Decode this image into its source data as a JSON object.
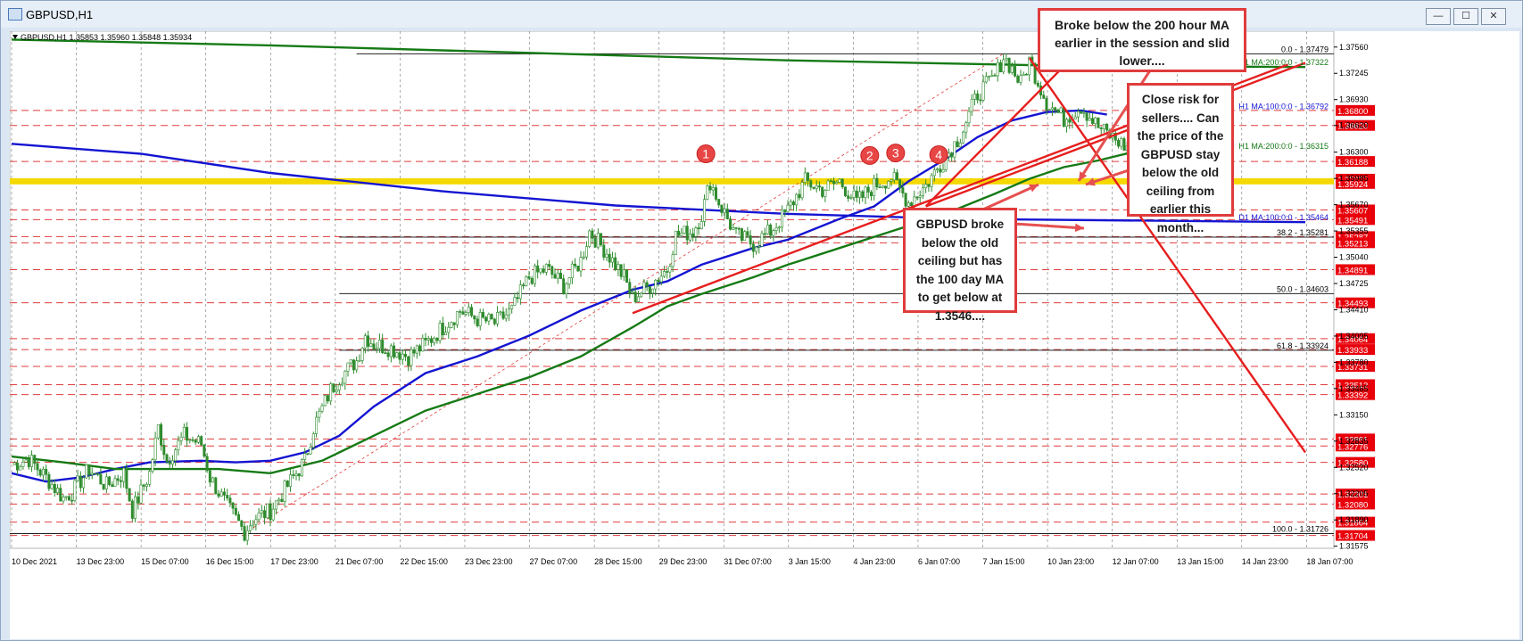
{
  "window": {
    "title": "GBPUSD,H1",
    "buttons": [
      "—",
      "☐",
      "✕"
    ]
  },
  "chart_data": {
    "type": "candlestick",
    "symbol_info": "GBPUSD,H1  1.35853 1.35960 1.35848 1.35934",
    "ylim": [
      1.3155,
      1.3775
    ],
    "price_ticks": [
      1.3756,
      1.37245,
      1.3693,
      1.3662,
      1.363,
      1.35985,
      1.3567,
      1.35355,
      1.3504,
      1.34725,
      1.3441,
      1.34095,
      1.3378,
      1.33465,
      1.3315,
      1.32835,
      1.3252,
      1.32205,
      1.3189,
      1.31575
    ],
    "price_tick_labels": [
      "1.37560",
      "1.37245",
      "1.36930",
      "1.36620",
      "1.36300",
      "1.35985",
      "1.35670",
      "1.35355",
      "1.35040",
      "1.34725",
      "1.34410",
      "1.34095",
      "1.33780",
      "1.33465",
      "1.33150",
      "1.32835",
      "1.32520",
      "1.32205",
      "1.31890",
      "1.31575"
    ],
    "time_labels": [
      "10 Dec 2021",
      "13 Dec 23:00",
      "15 Dec 07:00",
      "16 Dec 15:00",
      "17 Dec 23:00",
      "21 Dec 07:00",
      "22 Dec 15:00",
      "23 Dec 23:00",
      "27 Dec 07:00",
      "28 Dec 15:00",
      "29 Dec 23:00",
      "31 Dec 07:00",
      "3 Jan 15:00",
      "4 Jan 23:00",
      "6 Jan 07:00",
      "7 Jan 15:00",
      "10 Jan 23:00",
      "12 Jan 07:00",
      "13 Jan 15:00",
      "14 Jan 23:00",
      "18 Jan 07:00"
    ],
    "price_path": [
      [
        0,
        1.3255
      ],
      [
        2,
        1.3262
      ],
      [
        4,
        1.324
      ],
      [
        6,
        1.3215
      ],
      [
        7,
        1.3222
      ],
      [
        9,
        1.325
      ],
      [
        11,
        1.323
      ],
      [
        13,
        1.3245
      ],
      [
        14,
        1.32
      ],
      [
        16,
        1.3245
      ],
      [
        17,
        1.33
      ],
      [
        18,
        1.326
      ],
      [
        20,
        1.329
      ],
      [
        22,
        1.328
      ],
      [
        23,
        1.324
      ],
      [
        25,
        1.3205
      ],
      [
        27,
        1.3175
      ],
      [
        28,
        1.319
      ],
      [
        30,
        1.32
      ],
      [
        32,
        1.323
      ],
      [
        34,
        1.326
      ],
      [
        35,
        1.33
      ],
      [
        37,
        1.3345
      ],
      [
        38,
        1.336
      ],
      [
        40,
        1.338
      ],
      [
        41,
        1.341
      ],
      [
        42,
        1.34
      ],
      [
        44,
        1.3395
      ],
      [
        46,
        1.3385
      ],
      [
        48,
        1.34
      ],
      [
        50,
        1.342
      ],
      [
        52,
        1.344
      ],
      [
        54,
        1.343
      ],
      [
        56,
        1.3425
      ],
      [
        58,
        1.344
      ],
      [
        60,
        1.348
      ],
      [
        62,
        1.349
      ],
      [
        64,
        1.347
      ],
      [
        66,
        1.35
      ],
      [
        67,
        1.3535
      ],
      [
        69,
        1.351
      ],
      [
        71,
        1.348
      ],
      [
        72,
        1.3455
      ],
      [
        74,
        1.347
      ],
      [
        76,
        1.349
      ],
      [
        77,
        1.353
      ],
      [
        79,
        1.3535
      ],
      [
        80,
        1.3555
      ],
      [
        81,
        1.3595
      ],
      [
        82,
        1.357
      ],
      [
        84,
        1.353
      ],
      [
        86,
        1.352
      ],
      [
        88,
        1.3535
      ],
      [
        90,
        1.356
      ],
      [
        92,
        1.3595
      ],
      [
        94,
        1.3585
      ],
      [
        96,
        1.3595
      ],
      [
        98,
        1.357
      ],
      [
        100,
        1.359
      ],
      [
        102,
        1.36
      ],
      [
        104,
        1.357
      ],
      [
        106,
        1.359
      ],
      [
        108,
        1.362
      ],
      [
        110,
        1.365
      ],
      [
        112,
        1.37
      ],
      [
        114,
        1.372
      ],
      [
        115,
        1.3745
      ],
      [
        116,
        1.373
      ],
      [
        117,
        1.3712
      ],
      [
        118,
        1.374
      ],
      [
        120,
        1.369
      ],
      [
        122,
        1.367
      ],
      [
        124,
        1.3685
      ],
      [
        126,
        1.366
      ],
      [
        128,
        1.3645
      ],
      [
        130,
        1.363
      ],
      [
        131,
        1.361
      ],
      [
        133,
        1.3585
      ],
      [
        134,
        1.3575
      ],
      [
        135,
        1.359
      ]
    ],
    "series": [
      {
        "name": "H1 MA:100:0:0",
        "color": "#1414d2",
        "values": [
          [
            0,
            1.3245
          ],
          [
            4,
            1.3235
          ],
          [
            8,
            1.324
          ],
          [
            12,
            1.325
          ],
          [
            16,
            1.3258
          ],
          [
            22,
            1.326
          ],
          [
            26,
            1.3258
          ],
          [
            30,
            1.326
          ],
          [
            34,
            1.327
          ],
          [
            38,
            1.329
          ],
          [
            42,
            1.3325
          ],
          [
            48,
            1.3365
          ],
          [
            54,
            1.3385
          ],
          [
            60,
            1.341
          ],
          [
            66,
            1.344
          ],
          [
            72,
            1.3465
          ],
          [
            76,
            1.3475
          ],
          [
            80,
            1.3495
          ],
          [
            86,
            1.3515
          ],
          [
            90,
            1.3525
          ],
          [
            96,
            1.355
          ],
          [
            100,
            1.3565
          ],
          [
            104,
            1.3595
          ],
          [
            108,
            1.362
          ],
          [
            112,
            1.3648
          ],
          [
            116,
            1.3668
          ],
          [
            120,
            1.3678
          ],
          [
            124,
            1.368
          ],
          [
            127,
            1.3675
          ]
        ]
      },
      {
        "name": "H1 MA:200:0:0",
        "color": "#157a15",
        "values": [
          [
            0,
            1.3265
          ],
          [
            6,
            1.3258
          ],
          [
            12,
            1.325
          ],
          [
            18,
            1.325
          ],
          [
            24,
            1.325
          ],
          [
            30,
            1.3245
          ],
          [
            36,
            1.326
          ],
          [
            42,
            1.329
          ],
          [
            48,
            1.332
          ],
          [
            54,
            1.334
          ],
          [
            60,
            1.336
          ],
          [
            66,
            1.3385
          ],
          [
            72,
            1.342
          ],
          [
            76,
            1.3445
          ],
          [
            80,
            1.346
          ],
          [
            86,
            1.348
          ],
          [
            90,
            1.3495
          ],
          [
            96,
            1.3515
          ],
          [
            102,
            1.3535
          ],
          [
            108,
            1.3555
          ],
          [
            114,
            1.358
          ],
          [
            118,
            1.3598
          ],
          [
            122,
            1.3612
          ],
          [
            126,
            1.362
          ],
          [
            130,
            1.363
          ]
        ]
      },
      {
        "name": "D1 MA:200:0:0",
        "color": "#157a15",
        "values": [
          [
            0,
            1.3765
          ],
          [
            30,
            1.3758
          ],
          [
            60,
            1.3749
          ],
          [
            90,
            1.374
          ],
          [
            120,
            1.3734
          ],
          [
            150,
            1.3732
          ]
        ]
      },
      {
        "name": "D1 MA:100:0:0",
        "color": "#1414d2",
        "values": [
          [
            0,
            1.364
          ],
          [
            15,
            1.3628
          ],
          [
            30,
            1.3605
          ],
          [
            50,
            1.3583
          ],
          [
            70,
            1.3566
          ],
          [
            90,
            1.3556
          ],
          [
            110,
            1.355
          ],
          [
            150,
            1.3546
          ]
        ]
      }
    ],
    "right_labels": [
      {
        "text": "0.0 - 1.37479",
        "price": 1.37479,
        "color": "#000000"
      },
      {
        "text": "D1 MA:200:0:0 - 1.37322",
        "price": 1.37322,
        "color": "#157a15"
      },
      {
        "text": "H1 MA:100:0:0 - 1.36792",
        "price": 1.36792,
        "color": "#1414d2"
      },
      {
        "text": "H1 MA:200:0:0 - 1.36315",
        "price": 1.36315,
        "color": "#157a15"
      },
      {
        "text": "D1 MA:100:0:0 - 1.35464",
        "price": 1.35464,
        "color": "#1414d2"
      },
      {
        "text": "38.2 - 1.35281",
        "price": 1.35281,
        "color": "#000000"
      },
      {
        "text": "50.0 - 1.34603",
        "price": 1.34603,
        "color": "#000000"
      },
      {
        "text": "61.8 - 1.33924",
        "price": 1.33924,
        "color": "#000000"
      },
      {
        "text": "100.0 - 1.31726",
        "price": 1.31726,
        "color": "#000000"
      }
    ],
    "level_tags": [
      "1.36800",
      "1.36620",
      "1.36188",
      "1.35976",
      "1.35924",
      "1.35607",
      "1.35491",
      "1.35287",
      "1.35213",
      "1.34891",
      "1.34493",
      "1.34064",
      "1.33933",
      "1.33731",
      "1.33512",
      "1.33392",
      "1.32861",
      "1.32776",
      "1.32580",
      "1.32201",
      "1.32080",
      "1.31864",
      "1.31704"
    ],
    "level_prices": [
      1.368,
      1.3662,
      1.36188,
      1.35976,
      1.35924,
      1.35607,
      1.35491,
      1.35287,
      1.35213,
      1.34891,
      1.34493,
      1.34064,
      1.33933,
      1.33731,
      1.33512,
      1.33392,
      1.32861,
      1.32776,
      1.3258,
      1.32201,
      1.3208,
      1.31864,
      1.31704
    ],
    "markers": [
      {
        "label": "1",
        "x": 80.5,
        "price": 1.3613
      },
      {
        "label": "2",
        "x": 99.5,
        "price": 1.3611
      },
      {
        "label": "3",
        "x": 102.5,
        "price": 1.3614
      },
      {
        "label": "4",
        "x": 107.5,
        "price": 1.3612
      }
    ],
    "callouts": [
      {
        "text": "Broke below the 200 hour MA earlier in the session and slid lower...."
      },
      {
        "text": "Close risk for sellers.... Can the price of the GBPUSD stay below the old ceiling from earlier this month..."
      },
      {
        "text": "GBPUSD broke below the old ceiling but has the 100 day MA to get below at 1.3546...."
      }
    ]
  }
}
